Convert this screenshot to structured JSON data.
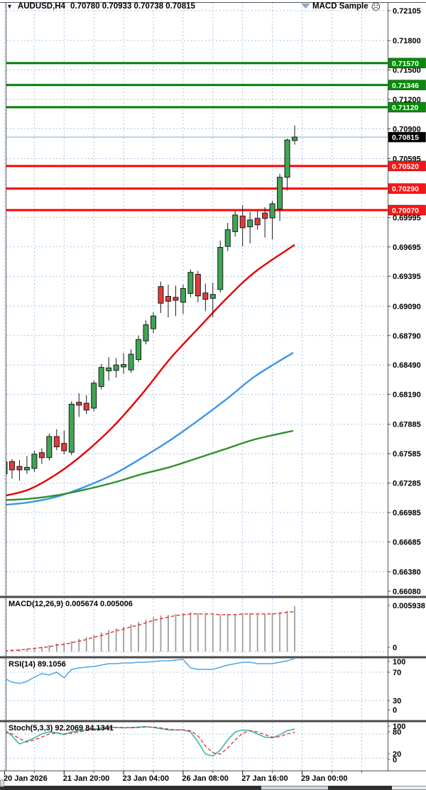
{
  "window": {
    "dropdown_icon": "▼",
    "symbol_period": "AUDUSD,H4",
    "ohlc_line": "0.70780 0.70933 0.70738 0.70815",
    "indicator_badge": "MACD Sample",
    "smiley_icon": "☹"
  },
  "colors": {
    "bull": "#3fa555",
    "bear": "#e23b3b",
    "candle_border": "#1a1a1a",
    "ma_fast": "#e60000",
    "ma_mid": "#3b95e8",
    "ma_slow": "#2f8f2f",
    "grid": "#aac4e2",
    "resistance_line": "#008000",
    "support_line": "#fe0000",
    "macd_hist": "#9e9e9e",
    "macd_signal": "#e03030",
    "rsi_line": "#4da6e8",
    "stoch_k": "#2fb5a0",
    "stoch_d": "#e03030",
    "badge_green": "#0a8a0a",
    "badge_red": "#fb1414",
    "badge_black": "#000000",
    "last_price_line": "#8aa6c0",
    "frame": "#4a4a4a"
  },
  "price_axis": {
    "labels": [
      {
        "text": "0.72105",
        "price": 0.72105
      },
      {
        "text": "0.71800",
        "price": 0.718
      },
      {
        "text": "0.71500",
        "price": 0.715
      },
      {
        "text": "0.71200",
        "price": 0.712
      },
      {
        "text": "0.70900",
        "price": 0.709
      },
      {
        "text": "0.70595",
        "price": 0.70595
      },
      {
        "text": "0.69995",
        "price": 0.69995
      },
      {
        "text": "0.69695",
        "price": 0.69695
      },
      {
        "text": "0.69395",
        "price": 0.69395
      },
      {
        "text": "0.69090",
        "price": 0.6909
      },
      {
        "text": "0.68790",
        "price": 0.6879
      },
      {
        "text": "0.68490",
        "price": 0.6849
      },
      {
        "text": "0.68190",
        "price": 0.6819
      },
      {
        "text": "0.67885",
        "price": 0.67885
      },
      {
        "text": "0.67585",
        "price": 0.67585
      },
      {
        "text": "0.67285",
        "price": 0.67285
      },
      {
        "text": "0.66985",
        "price": 0.66985
      },
      {
        "text": "0.66685",
        "price": 0.66685
      },
      {
        "text": "0.66380",
        "price": 0.6638
      },
      {
        "text": "0.66080",
        "price": 0.6608
      }
    ],
    "hidden_grid_price": 0.70295,
    "badges": [
      {
        "text": "0.71570",
        "price": 0.7157,
        "kind": "green"
      },
      {
        "text": "0.71346",
        "price": 0.71346,
        "kind": "green"
      },
      {
        "text": "0.71120",
        "price": 0.7112,
        "kind": "green"
      },
      {
        "text": "0.70815",
        "price": 0.70815,
        "kind": "black"
      },
      {
        "text": "0.70520",
        "price": 0.7052,
        "kind": "red"
      },
      {
        "text": "0.70290",
        "price": 0.7029,
        "kind": "red"
      },
      {
        "text": "0.70070",
        "price": 0.7007,
        "kind": "red"
      }
    ]
  },
  "time_axis": {
    "labels": [
      "20 Jan 2026",
      "21 Jan 20:00",
      "23 Jan 04:00",
      "26 Jan 08:00",
      "27 Jan 16:00",
      "29 Jan 00:00"
    ]
  },
  "chart_data": [
    {
      "type": "candlestick",
      "title": "AUDUSD,H4",
      "ylim": [
        0.6608,
        0.72105
      ],
      "last_price": 0.70815,
      "candles": [
        [
          0.6738,
          0.6753,
          0.6735,
          0.675
        ],
        [
          0.67505,
          0.6753,
          0.6733,
          0.6742
        ],
        [
          0.67455,
          0.6752,
          0.6731,
          0.6742
        ],
        [
          0.6742,
          0.6756,
          0.6738,
          0.67445
        ],
        [
          0.67435,
          0.67615,
          0.674,
          0.6758
        ],
        [
          0.67595,
          0.6764,
          0.6748,
          0.67545
        ],
        [
          0.67545,
          0.6779,
          0.67515,
          0.6776
        ],
        [
          0.6776,
          0.67835,
          0.6762,
          0.67655
        ],
        [
          0.6769,
          0.6782,
          0.6758,
          0.67615
        ],
        [
          0.676,
          0.6812,
          0.6757,
          0.6809
        ],
        [
          0.6811,
          0.682,
          0.6796,
          0.6808
        ],
        [
          0.681,
          0.6818,
          0.6799,
          0.6803
        ],
        [
          0.6805,
          0.6833,
          0.6802,
          0.68305
        ],
        [
          0.6827,
          0.685,
          0.6824,
          0.68465
        ],
        [
          0.6843,
          0.6857,
          0.6833,
          0.6846
        ],
        [
          0.68435,
          0.6856,
          0.6836,
          0.6849
        ],
        [
          0.6847,
          0.6861,
          0.684,
          0.68495
        ],
        [
          0.6844,
          0.6865,
          0.6841,
          0.686
        ],
        [
          0.68545,
          0.6879,
          0.6852,
          0.6875
        ],
        [
          0.68735,
          0.68945,
          0.687,
          0.689
        ],
        [
          0.6886,
          0.6903,
          0.68815,
          0.6899
        ],
        [
          0.6929,
          0.6934,
          0.6902,
          0.6912
        ],
        [
          0.6919,
          0.6931,
          0.68975,
          0.6914
        ],
        [
          0.6918,
          0.693,
          0.6899,
          0.6915
        ],
        [
          0.6913,
          0.6931,
          0.6901,
          0.6927
        ],
        [
          0.6922,
          0.69465,
          0.6918,
          0.69435
        ],
        [
          0.69415,
          0.6945,
          0.6913,
          0.69195
        ],
        [
          0.69225,
          0.6932,
          0.6904,
          0.6916
        ],
        [
          0.6917,
          0.6933,
          0.68975,
          0.6921
        ],
        [
          0.6926,
          0.6976,
          0.6923,
          0.6969
        ],
        [
          0.697,
          0.6994,
          0.6965,
          0.6987
        ],
        [
          0.6985,
          0.7006,
          0.698,
          0.7002
        ],
        [
          0.7001,
          0.7012,
          0.697,
          0.6989
        ],
        [
          0.699,
          0.7005,
          0.6973,
          0.6997
        ],
        [
          0.69985,
          0.7006,
          0.6987,
          0.6992
        ],
        [
          0.7004,
          0.701,
          0.6979,
          0.69985
        ],
        [
          0.6999,
          0.70165,
          0.6977,
          0.70135
        ],
        [
          0.7008,
          0.7044,
          0.6996,
          0.70405
        ],
        [
          0.70405,
          0.708,
          0.7027,
          0.70785
        ],
        [
          0.7078,
          0.70933,
          0.70738,
          0.70815
        ]
      ],
      "hlines": [
        {
          "price": 0.7157,
          "role": "resistance"
        },
        {
          "price": 0.71346,
          "role": "resistance"
        },
        {
          "price": 0.7112,
          "role": "resistance"
        },
        {
          "price": 0.7052,
          "role": "support"
        },
        {
          "price": 0.7029,
          "role": "support"
        },
        {
          "price": 0.7007,
          "role": "support"
        }
      ],
      "moving_averages": [
        {
          "name": "ma-fast-red",
          "points": [
            [
              -0.6,
              0.67146
            ],
            [
              3.2,
              0.67218
            ],
            [
              7,
              0.67377
            ],
            [
              10.8,
              0.67595
            ],
            [
              14.7,
              0.6787
            ],
            [
              18.5,
              0.68196
            ],
            [
              22.3,
              0.68558
            ],
            [
              26.1,
              0.68869
            ],
            [
              29.9,
              0.69173
            ],
            [
              33.7,
              0.69441
            ],
            [
              39,
              0.69716
            ]
          ]
        },
        {
          "name": "ma-mid-blue",
          "points": [
            [
              -0.6,
              0.67059
            ],
            [
              3.2,
              0.67088
            ],
            [
              7,
              0.67146
            ],
            [
              10.8,
              0.67247
            ],
            [
              14.7,
              0.67377
            ],
            [
              18.5,
              0.67544
            ],
            [
              22.3,
              0.67725
            ],
            [
              26.1,
              0.67928
            ],
            [
              29.9,
              0.68145
            ],
            [
              33.7,
              0.68376
            ],
            [
              38.8,
              0.68615
            ]
          ]
        },
        {
          "name": "ma-slow-green",
          "points": [
            [
              -0.6,
              0.6711
            ],
            [
              3.2,
              0.67124
            ],
            [
              7,
              0.6716
            ],
            [
              10.8,
              0.67218
            ],
            [
              14.7,
              0.67291
            ],
            [
              18.5,
              0.67377
            ],
            [
              22.3,
              0.6745
            ],
            [
              26.1,
              0.67544
            ],
            [
              29.9,
              0.67638
            ],
            [
              33.7,
              0.67732
            ],
            [
              38.8,
              0.67819
            ]
          ]
        }
      ]
    },
    {
      "type": "bar",
      "title": "MACD(12,26,9)",
      "label_full": "MACD(12,26,9) 0.005674 0.005006",
      "macd_value": 0.005674,
      "signal_value": 0.005006,
      "ylim": [
        0,
        0.005938
      ],
      "yticks": [
        "0.005938",
        "0"
      ],
      "histogram": [
        0.0002,
        0.00025,
        0.0003,
        0.0004,
        0.0005,
        0.0006,
        0.0008,
        0.001,
        0.0011,
        0.0013,
        0.0016,
        0.0018,
        0.0021,
        0.0024,
        0.0027,
        0.0029,
        0.0031,
        0.0034,
        0.0037,
        0.004,
        0.0043,
        0.0045,
        0.0046,
        0.0047,
        0.0048,
        0.0049,
        0.0048,
        0.0047,
        0.0046,
        0.0046,
        0.0047,
        0.0047,
        0.0048,
        0.0048,
        0.0047,
        0.0047,
        0.0048,
        0.0049,
        0.0051,
        0.005674
      ],
      "signal": [
        0.0001,
        0.00015,
        0.0002,
        0.0003,
        0.0004,
        0.0005,
        0.0006,
        0.0008,
        0.0009,
        0.0011,
        0.0013,
        0.0015,
        0.0018,
        0.002,
        0.0023,
        0.0026,
        0.0028,
        0.0031,
        0.0033,
        0.0036,
        0.0039,
        0.0041,
        0.0043,
        0.0045,
        0.0046,
        0.0047,
        0.0047,
        0.0047,
        0.0047,
        0.0046,
        0.0046,
        0.0046,
        0.0047,
        0.0047,
        0.0047,
        0.0047,
        0.0047,
        0.0048,
        0.0049,
        0.005006
      ]
    },
    {
      "type": "line",
      "title": "RSI(14)",
      "label_full": "RSI(14) 89.1056",
      "rsi_value": 89.1056,
      "ylim": [
        0,
        100
      ],
      "levels": [
        70,
        30
      ],
      "yticks": [
        "100",
        "70",
        "30",
        "0"
      ],
      "values": [
        61,
        56,
        54,
        57,
        63,
        68,
        66,
        70,
        62,
        74,
        76,
        77,
        78,
        80,
        82,
        82,
        83,
        83,
        84,
        84,
        85,
        86,
        86,
        87,
        88,
        76,
        74,
        74,
        74,
        77,
        80,
        82,
        84,
        84,
        82,
        82,
        82,
        84,
        86,
        89.1
      ]
    },
    {
      "type": "line",
      "title": "Stoch(5,3,3)",
      "label_full": "Stoch(5,3,3) 92.2069 84.1341",
      "k_value": 92.2069,
      "d_value": 84.1341,
      "ylim": [
        0,
        100
      ],
      "levels": [
        80,
        20
      ],
      "yticks": [
        "100",
        "80",
        "20",
        "0"
      ],
      "k": [
        90,
        75,
        55,
        62,
        70,
        80,
        85,
        83,
        78,
        85,
        88,
        90,
        92,
        95,
        97,
        96,
        95,
        96,
        97,
        98,
        96,
        93,
        90,
        90,
        90,
        85,
        60,
        30,
        25,
        40,
        65,
        85,
        90,
        88,
        80,
        72,
        70,
        78,
        88,
        92.2
      ],
      "d": [
        85,
        80,
        68,
        60,
        65,
        72,
        80,
        82,
        80,
        82,
        85,
        88,
        90,
        92,
        94,
        96,
        96,
        95,
        96,
        97,
        97,
        95,
        92,
        90,
        90,
        88,
        75,
        50,
        33,
        30,
        45,
        65,
        82,
        88,
        85,
        78,
        72,
        73,
        80,
        84.1
      ]
    }
  ]
}
